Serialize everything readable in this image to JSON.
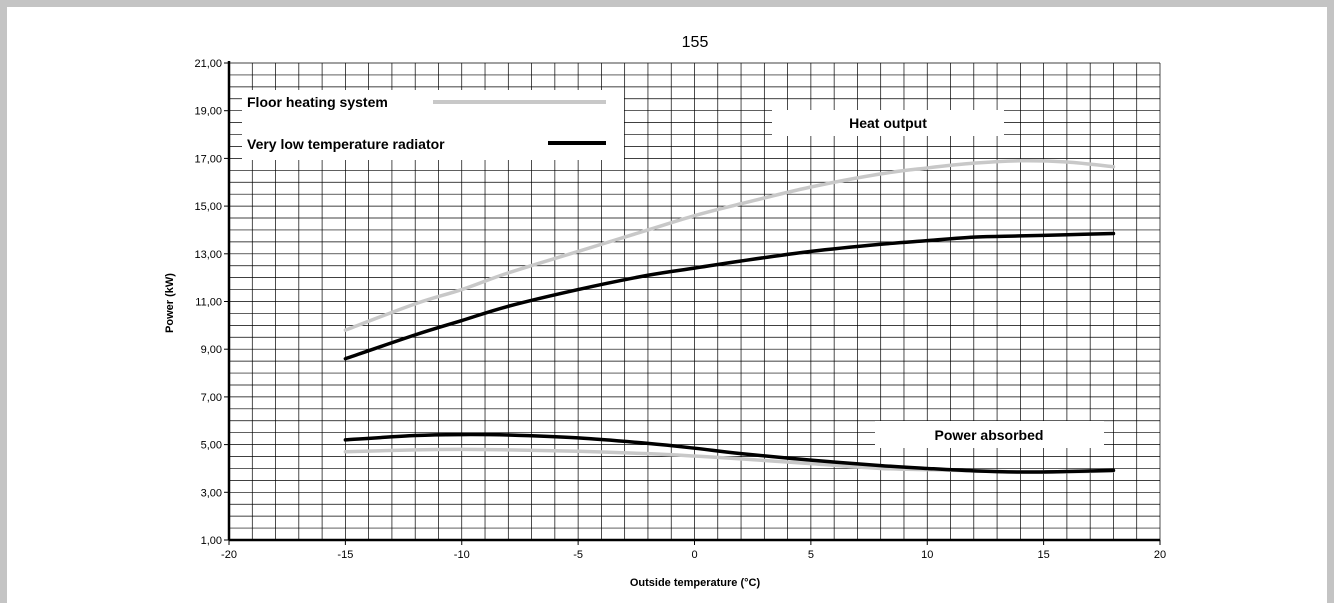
{
  "chart_data": {
    "type": "line",
    "title": "155",
    "xlabel": "Outside temperature   (°C)",
    "ylabel": "Power  (kW)",
    "xlim": [
      -20,
      20
    ],
    "ylim": [
      1,
      21
    ],
    "x_major_ticks": [
      -20,
      -15,
      -10,
      -5,
      0,
      5,
      10,
      15,
      20
    ],
    "x_tick_labels": [
      "-20",
      "-15",
      "-10",
      "-5",
      "0",
      "5",
      "10",
      "15",
      "20"
    ],
    "y_major_ticks": [
      1,
      3,
      5,
      7,
      9,
      11,
      13,
      15,
      17,
      19,
      21
    ],
    "y_tick_labels": [
      "1,00",
      "3,00",
      "5,00",
      "7,00",
      "9,00",
      "11,00",
      "13,00",
      "15,00",
      "17,00",
      "19,00",
      "21,00"
    ],
    "grid": true,
    "legend": [
      {
        "label": "Floor heating system",
        "color": "#c8c8c8"
      },
      {
        "label": "Very low temperature radiator",
        "color": "#000000"
      }
    ],
    "annotations": {
      "heat_output": "Heat output",
      "power_absorbed": "Power absorbed"
    },
    "series": [
      {
        "name": "Floor heating system",
        "group": "Heat output",
        "color": "#c8c8c8",
        "x": [
          -15,
          -12,
          -10,
          -8,
          -5,
          -2,
          0,
          2,
          5,
          8,
          10,
          12,
          14,
          16,
          18
        ],
        "y": [
          9.8,
          10.9,
          11.5,
          12.2,
          13.1,
          14.0,
          14.6,
          15.1,
          15.8,
          16.35,
          16.6,
          16.8,
          16.9,
          16.85,
          16.65
        ]
      },
      {
        "name": "Very low temperature radiator",
        "group": "Heat output",
        "color": "#000000",
        "x": [
          -15,
          -12,
          -10,
          -8,
          -5,
          -2,
          0,
          2,
          5,
          8,
          10,
          12,
          14,
          16,
          18
        ],
        "y": [
          8.6,
          9.6,
          10.2,
          10.8,
          11.5,
          12.1,
          12.4,
          12.7,
          13.1,
          13.4,
          13.55,
          13.7,
          13.75,
          13.8,
          13.85
        ]
      },
      {
        "name": "Floor heating system",
        "group": "Power absorbed",
        "color": "#c8c8c8",
        "x": [
          -15,
          -12,
          -10,
          -8,
          -5,
          -2,
          0,
          2,
          5,
          8,
          10,
          12,
          14,
          16,
          18
        ],
        "y": [
          4.7,
          4.78,
          4.8,
          4.78,
          4.72,
          4.62,
          4.52,
          4.4,
          4.2,
          4.0,
          3.95,
          3.9,
          3.85,
          3.86,
          3.9
        ]
      },
      {
        "name": "Very low temperature radiator",
        "group": "Power absorbed",
        "color": "#000000",
        "x": [
          -15,
          -12,
          -10,
          -8,
          -5,
          -2,
          0,
          2,
          5,
          8,
          10,
          12,
          14,
          16,
          18
        ],
        "y": [
          5.2,
          5.38,
          5.42,
          5.4,
          5.28,
          5.05,
          4.85,
          4.62,
          4.35,
          4.12,
          4.0,
          3.9,
          3.85,
          3.87,
          3.92
        ]
      }
    ]
  }
}
